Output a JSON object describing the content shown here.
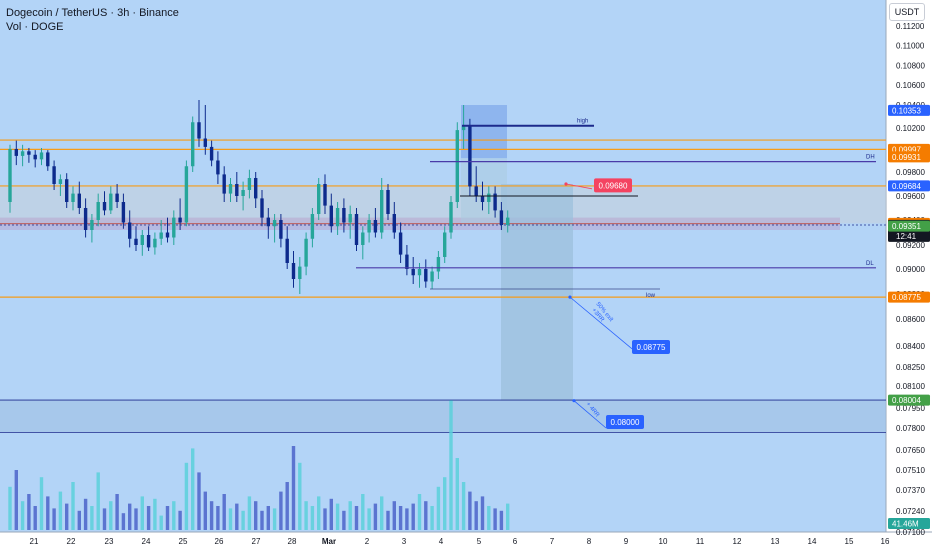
{
  "header": {
    "title": "Dogecoin / TetherUS · 3h · Binance",
    "volume_label": "Vol · DOGE"
  },
  "currency_button": "USDT",
  "colors": {
    "background": "#b3d4f7",
    "up": "#26a69a",
    "down": "#0d2a8c",
    "orange": "#f59c1a",
    "navy": "#1c2a8c",
    "purple": "#4a3ba8",
    "label_blue": "#2962ff",
    "label_orange": "#f57c00",
    "label_green": "#43a047",
    "label_black": "#131722",
    "label_red": "#f44361",
    "teal_label": "#26a69a"
  },
  "chart_data": {
    "type": "candlestick",
    "y_ticks": [
      "0.11200",
      "0.11000",
      "0.10800",
      "0.10600",
      "0.10400",
      "0.10200",
      "0.10000",
      "0.09800",
      "0.09600",
      "0.09400",
      "0.09200",
      "0.09000",
      "0.08800",
      "0.08600",
      "0.08400",
      "0.08250",
      "0.08100",
      "0.07950",
      "0.07800",
      "0.07650",
      "0.07510",
      "0.07370",
      "0.07240",
      "0.07100"
    ],
    "x_ticks": [
      "21",
      "22",
      "23",
      "24",
      "25",
      "26",
      "27",
      "28",
      "Mar",
      "2",
      "3",
      "4",
      "5",
      "6",
      "7",
      "8",
      "9",
      "10",
      "11",
      "12",
      "13",
      "14",
      "15",
      "16"
    ],
    "price_labels": [
      {
        "text": "0.10353",
        "price": 0.10353,
        "color": "label_blue"
      },
      {
        "text": "0.09997",
        "price": 0.09997,
        "color": "label_orange"
      },
      {
        "text": "0.09931",
        "price": 0.09931,
        "color": "label_orange"
      },
      {
        "text": "0.09684",
        "price": 0.09684,
        "color": "label_blue"
      },
      {
        "text": "0.09373",
        "price": 0.09373,
        "color": "label_orange"
      },
      {
        "text": "0.09357",
        "price": 0.09357,
        "color": "label_black",
        "sub": "12:41"
      },
      {
        "text": "0.09351",
        "price": 0.09351,
        "color": "label_green"
      },
      {
        "text": "0.08775",
        "price": 0.08775,
        "color": "label_orange"
      },
      {
        "text": "0.08004",
        "price": 0.08004,
        "color": "label_green"
      },
      {
        "text": "41.46M",
        "price": 0.07164,
        "color": "teal_label"
      }
    ],
    "annotations": [
      {
        "text": "high",
        "price": 0.1022
      },
      {
        "text": "DH",
        "price": 0.0989
      },
      {
        "text": "DL",
        "price": 0.0901
      },
      {
        "text": "low",
        "price": 0.0884
      },
      {
        "text": "50% exit\n+3RR"
      },
      {
        "text": "+ 4RR"
      }
    ],
    "targets": [
      {
        "text": "0.09680",
        "price": 0.0968,
        "color": "label_red"
      },
      {
        "text": "0.08775",
        "price": 0.08775,
        "color": "label_blue"
      },
      {
        "text": "0.08000",
        "price": 0.08,
        "color": "label_blue"
      }
    ],
    "levels": [
      {
        "price": 0.10085,
        "color": "orange"
      },
      {
        "price": 0.09997,
        "color": "orange"
      },
      {
        "price": 0.09684,
        "color": "orange"
      },
      {
        "price": 0.08775,
        "color": "orange"
      },
      {
        "price": 0.08004,
        "color": "navy"
      },
      {
        "price": 0.0777,
        "color": "navy"
      }
    ],
    "candles": [
      [
        0.0955,
        0.1004,
        0.0946,
        0.1
      ],
      [
        0.1,
        0.1008,
        0.0986,
        0.0994
      ],
      [
        0.0994,
        0.1004,
        0.0985,
        0.0998
      ],
      [
        0.0998,
        0.1001,
        0.0988,
        0.0995
      ],
      [
        0.0995,
        0.0999,
        0.0984,
        0.0991
      ],
      [
        0.0991,
        0.1001,
        0.0986,
        0.0997
      ],
      [
        0.0997,
        0.0999,
        0.0981,
        0.0985
      ],
      [
        0.0985,
        0.099,
        0.0965,
        0.097
      ],
      [
        0.097,
        0.0978,
        0.096,
        0.0974
      ],
      [
        0.0974,
        0.0979,
        0.095,
        0.0955
      ],
      [
        0.0955,
        0.0968,
        0.0948,
        0.0962
      ],
      [
        0.0962,
        0.0972,
        0.0945,
        0.095
      ],
      [
        0.095,
        0.0958,
        0.0926,
        0.0932
      ],
      [
        0.0932,
        0.0945,
        0.0922,
        0.094
      ],
      [
        0.094,
        0.0962,
        0.0935,
        0.0955
      ],
      [
        0.0955,
        0.0964,
        0.0944,
        0.0948
      ],
      [
        0.0948,
        0.0968,
        0.0945,
        0.0962
      ],
      [
        0.0962,
        0.097,
        0.095,
        0.0955
      ],
      [
        0.0955,
        0.0962,
        0.0933,
        0.0938
      ],
      [
        0.0938,
        0.0948,
        0.0918,
        0.0925
      ],
      [
        0.0925,
        0.0935,
        0.0915,
        0.092
      ],
      [
        0.092,
        0.0932,
        0.0911,
        0.0928
      ],
      [
        0.0928,
        0.0935,
        0.0915,
        0.0918
      ],
      [
        0.0918,
        0.093,
        0.0912,
        0.0925
      ],
      [
        0.0925,
        0.094,
        0.092,
        0.093
      ],
      [
        0.093,
        0.0942,
        0.0922,
        0.0926
      ],
      [
        0.0926,
        0.0948,
        0.092,
        0.0942
      ],
      [
        0.0942,
        0.0958,
        0.0932,
        0.0938
      ],
      [
        0.0938,
        0.099,
        0.0935,
        0.0985
      ],
      [
        0.0985,
        0.103,
        0.098,
        0.1025
      ],
      [
        0.1025,
        0.1045,
        0.1002,
        0.101
      ],
      [
        0.101,
        0.104,
        0.0995,
        0.1002
      ],
      [
        0.1002,
        0.1008,
        0.0985,
        0.099
      ],
      [
        0.099,
        0.0998,
        0.097,
        0.0978
      ],
      [
        0.0978,
        0.0985,
        0.0955,
        0.0962
      ],
      [
        0.0962,
        0.0975,
        0.0955,
        0.097
      ],
      [
        0.097,
        0.098,
        0.0955,
        0.096
      ],
      [
        0.096,
        0.0972,
        0.0948,
        0.0965
      ],
      [
        0.0965,
        0.0982,
        0.0958,
        0.0975
      ],
      [
        0.0975,
        0.098,
        0.095,
        0.0958
      ],
      [
        0.0958,
        0.0965,
        0.0935,
        0.0942
      ],
      [
        0.0942,
        0.095,
        0.0925,
        0.0935
      ],
      [
        0.0935,
        0.0945,
        0.0922,
        0.094
      ],
      [
        0.094,
        0.0945,
        0.0918,
        0.0925
      ],
      [
        0.0925,
        0.0935,
        0.09,
        0.0905
      ],
      [
        0.0905,
        0.0915,
        0.0885,
        0.0892
      ],
      [
        0.0892,
        0.091,
        0.088,
        0.0902
      ],
      [
        0.0902,
        0.093,
        0.0895,
        0.0925
      ],
      [
        0.0925,
        0.095,
        0.0918,
        0.0945
      ],
      [
        0.0945,
        0.0975,
        0.094,
        0.097
      ],
      [
        0.097,
        0.0978,
        0.0945,
        0.0952
      ],
      [
        0.0952,
        0.0962,
        0.093,
        0.0935
      ],
      [
        0.0935,
        0.0955,
        0.0928,
        0.095
      ],
      [
        0.095,
        0.0958,
        0.093,
        0.0938
      ],
      [
        0.0938,
        0.0952,
        0.0925,
        0.0945
      ],
      [
        0.0945,
        0.095,
        0.0915,
        0.092
      ],
      [
        0.092,
        0.0935,
        0.0908,
        0.093
      ],
      [
        0.093,
        0.0945,
        0.0922,
        0.094
      ],
      [
        0.094,
        0.095,
        0.0926,
        0.093
      ],
      [
        0.093,
        0.0975,
        0.0925,
        0.0965
      ],
      [
        0.0965,
        0.097,
        0.094,
        0.0945
      ],
      [
        0.0945,
        0.0955,
        0.0925,
        0.093
      ],
      [
        0.093,
        0.0938,
        0.0905,
        0.0912
      ],
      [
        0.0912,
        0.092,
        0.0895,
        0.09
      ],
      [
        0.09,
        0.091,
        0.0888,
        0.0895
      ],
      [
        0.0895,
        0.0905,
        0.0885,
        0.09
      ],
      [
        0.09,
        0.0908,
        0.0885,
        0.089
      ],
      [
        0.089,
        0.0902,
        0.0884,
        0.0898
      ],
      [
        0.0898,
        0.0915,
        0.0892,
        0.091
      ],
      [
        0.091,
        0.0935,
        0.0905,
        0.093
      ],
      [
        0.093,
        0.096,
        0.0925,
        0.0955
      ],
      [
        0.0955,
        0.1025,
        0.095,
        0.1018
      ],
      [
        0.1018,
        0.104,
        0.1,
        0.1022
      ],
      [
        0.1022,
        0.1028,
        0.096,
        0.0968
      ],
      [
        0.0968,
        0.0985,
        0.0955,
        0.096
      ],
      [
        0.096,
        0.0972,
        0.0948,
        0.0955
      ],
      [
        0.0955,
        0.0968,
        0.0945,
        0.0962
      ],
      [
        0.0962,
        0.0968,
        0.0942,
        0.0948
      ],
      [
        0.0948,
        0.0955,
        0.0932,
        0.0936
      ],
      [
        0.0936,
        0.0948,
        0.093,
        0.0942
      ]
    ],
    "volume": [
      18,
      25,
      12,
      15,
      10,
      22,
      14,
      9,
      16,
      11,
      20,
      8,
      13,
      10,
      24,
      9,
      12,
      15,
      7,
      11,
      9,
      14,
      10,
      13,
      6,
      10,
      12,
      8,
      28,
      34,
      24,
      16,
      12,
      10,
      15,
      9,
      11,
      8,
      14,
      12,
      8,
      10,
      9,
      16,
      20,
      35,
      28,
      12,
      10,
      14,
      9,
      13,
      11,
      8,
      12,
      10,
      15,
      9,
      11,
      14,
      8,
      12,
      10,
      9,
      11,
      15,
      12,
      10,
      18,
      22,
      54,
      30,
      20,
      16,
      12,
      14,
      10,
      9,
      8,
      11
    ]
  }
}
